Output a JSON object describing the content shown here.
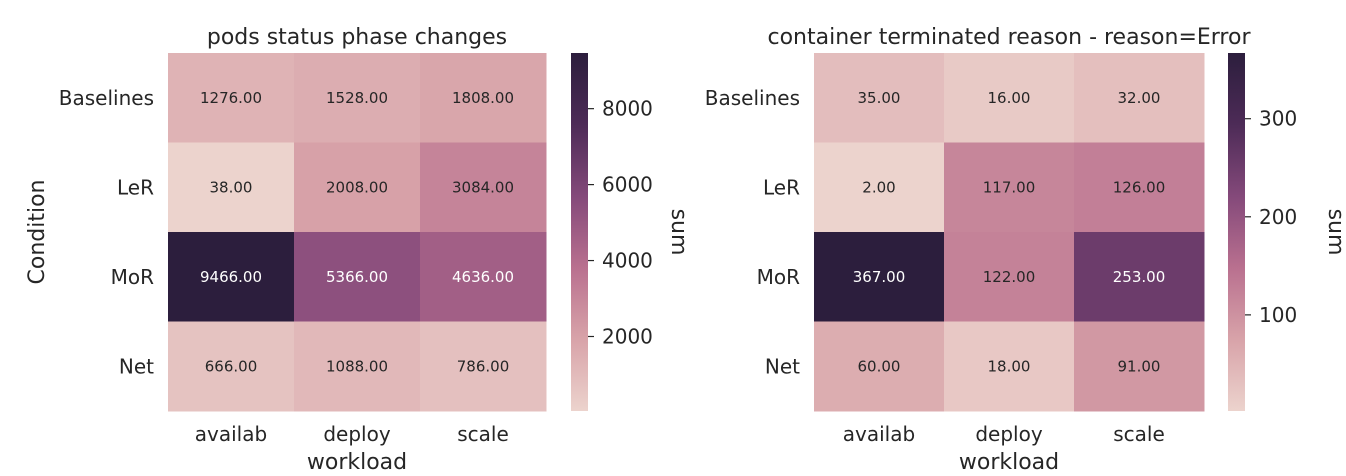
{
  "chart_data": [
    {
      "type": "heatmap",
      "title": "pods status phase changes",
      "xlabel": "workload",
      "ylabel": "Condition",
      "x_categories": [
        "availab",
        "deploy",
        "scale"
      ],
      "y_categories": [
        "Baselines",
        "LeR",
        "MoR",
        "Net"
      ],
      "values": [
        [
          1276.0,
          1528.0,
          1808.0
        ],
        [
          38.0,
          2008.0,
          3084.0
        ],
        [
          9466.0,
          5366.0,
          4636.0
        ],
        [
          666.0,
          1088.0,
          786.0
        ]
      ],
      "value_labels": [
        [
          "1276.00",
          "1528.00",
          "1808.00"
        ],
        [
          "38.00",
          "2008.00",
          "3084.00"
        ],
        [
          "9466.00",
          "5366.00",
          "4636.00"
        ],
        [
          "666.00",
          "1088.00",
          "786.00"
        ]
      ],
      "colorbar": {
        "label": "sum",
        "vmin": 38,
        "vmax": 9466,
        "ticks": [
          2000,
          4000,
          6000,
          8000
        ],
        "tick_labels": [
          "2000",
          "4000",
          "6000",
          "8000"
        ]
      }
    },
    {
      "type": "heatmap",
      "title": "container terminated reason - reason=Error",
      "xlabel": "workload",
      "ylabel": "",
      "x_categories": [
        "availab",
        "deploy",
        "scale"
      ],
      "y_categories": [
        "Baselines",
        "LeR",
        "MoR",
        "Net"
      ],
      "values": [
        [
          35.0,
          16.0,
          32.0
        ],
        [
          2.0,
          117.0,
          126.0
        ],
        [
          367.0,
          122.0,
          253.0
        ],
        [
          60.0,
          18.0,
          91.0
        ]
      ],
      "value_labels": [
        [
          "35.00",
          "16.00",
          "32.00"
        ],
        [
          "2.00",
          "117.00",
          "126.00"
        ],
        [
          "367.00",
          "122.00",
          "253.00"
        ],
        [
          "60.00",
          "18.00",
          "91.00"
        ]
      ],
      "colorbar": {
        "label": "sum",
        "vmin": 2,
        "vmax": 367,
        "ticks": [
          100,
          200,
          300
        ],
        "tick_labels": [
          "100",
          "200",
          "300"
        ]
      }
    }
  ],
  "colormap": [
    "#ecd3cd",
    "#d8a3a9",
    "#b9708f",
    "#84497a",
    "#4d2b57",
    "#2c1e3d"
  ]
}
